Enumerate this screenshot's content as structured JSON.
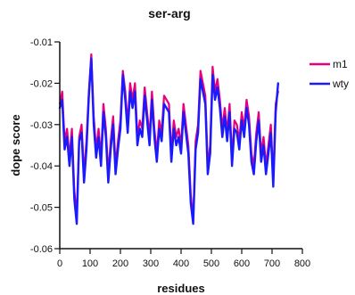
{
  "chart_data": {
    "type": "line",
    "title": "ser-arg",
    "xlabel": "residues",
    "ylabel": "dope score",
    "xlim": [
      0,
      800
    ],
    "ylim": [
      -0.06,
      -0.01
    ],
    "x_ticks": [
      0,
      100,
      200,
      300,
      400,
      500,
      600,
      700,
      800
    ],
    "x_tick_labels": [
      "0",
      "100",
      "200",
      "300",
      "400",
      "500",
      "600",
      "700",
      "800"
    ],
    "y_ticks": [
      -0.06,
      -0.05,
      -0.04,
      -0.03,
      -0.02,
      -0.01
    ],
    "y_tick_labels": [
      "-0.06",
      "-0.05",
      "-0.04",
      "-0.03",
      "-0.02",
      "-0.01"
    ],
    "grid": false,
    "legend_position": "top-right",
    "series": [
      {
        "name": "m1",
        "color": "#e6007e",
        "points": [
          [
            0,
            -0.025
          ],
          [
            8,
            -0.022
          ],
          [
            16,
            -0.034
          ],
          [
            24,
            -0.031
          ],
          [
            32,
            -0.038
          ],
          [
            40,
            -0.031
          ],
          [
            48,
            -0.046
          ],
          [
            56,
            -0.052
          ],
          [
            64,
            -0.033
          ],
          [
            72,
            -0.03
          ],
          [
            80,
            -0.042
          ],
          [
            88,
            -0.034
          ],
          [
            96,
            -0.022
          ],
          [
            104,
            -0.013
          ],
          [
            112,
            -0.028
          ],
          [
            120,
            -0.036
          ],
          [
            128,
            -0.031
          ],
          [
            136,
            -0.038
          ],
          [
            144,
            -0.025
          ],
          [
            152,
            -0.031
          ],
          [
            160,
            -0.042
          ],
          [
            168,
            -0.034
          ],
          [
            176,
            -0.028
          ],
          [
            184,
            -0.04
          ],
          [
            192,
            -0.034
          ],
          [
            200,
            -0.029
          ],
          [
            208,
            -0.017
          ],
          [
            216,
            -0.022
          ],
          [
            224,
            -0.03
          ],
          [
            232,
            -0.02
          ],
          [
            240,
            -0.024
          ],
          [
            248,
            -0.02
          ],
          [
            256,
            -0.033
          ],
          [
            264,
            -0.029
          ],
          [
            272,
            -0.031
          ],
          [
            280,
            -0.021
          ],
          [
            288,
            -0.027
          ],
          [
            296,
            -0.033
          ],
          [
            304,
            -0.022
          ],
          [
            312,
            -0.031
          ],
          [
            320,
            -0.037
          ],
          [
            328,
            -0.029
          ],
          [
            336,
            -0.032
          ],
          [
            344,
            -0.023
          ],
          [
            352,
            -0.024
          ],
          [
            360,
            -0.025
          ],
          [
            368,
            -0.037
          ],
          [
            376,
            -0.029
          ],
          [
            384,
            -0.033
          ],
          [
            392,
            -0.031
          ],
          [
            400,
            -0.035
          ],
          [
            408,
            -0.025
          ],
          [
            416,
            -0.03
          ],
          [
            424,
            -0.035
          ],
          [
            432,
            -0.047
          ],
          [
            440,
            -0.053
          ],
          [
            448,
            -0.034
          ],
          [
            456,
            -0.03
          ],
          [
            464,
            -0.017
          ],
          [
            472,
            -0.02
          ],
          [
            480,
            -0.023
          ],
          [
            488,
            -0.04
          ],
          [
            496,
            -0.035
          ],
          [
            504,
            -0.016
          ],
          [
            512,
            -0.022
          ],
          [
            520,
            -0.019
          ],
          [
            528,
            -0.024
          ],
          [
            536,
            -0.031
          ],
          [
            544,
            -0.026
          ],
          [
            552,
            -0.032
          ],
          [
            560,
            -0.025
          ],
          [
            568,
            -0.038
          ],
          [
            576,
            -0.029
          ],
          [
            584,
            -0.03
          ],
          [
            592,
            -0.034
          ],
          [
            600,
            -0.027
          ],
          [
            608,
            -0.031
          ],
          [
            616,
            -0.024
          ],
          [
            624,
            -0.028
          ],
          [
            632,
            -0.037
          ],
          [
            640,
            -0.04
          ],
          [
            648,
            -0.032
          ],
          [
            656,
            -0.027
          ],
          [
            664,
            -0.037
          ],
          [
            672,
            -0.033
          ],
          [
            680,
            -0.04
          ],
          [
            688,
            -0.035
          ],
          [
            696,
            -0.03
          ],
          [
            704,
            -0.043
          ],
          [
            712,
            -0.025
          ],
          [
            720,
            -0.022
          ]
        ]
      },
      {
        "name": "wty",
        "color": "#1a1aff",
        "points": [
          [
            0,
            -0.026
          ],
          [
            8,
            -0.024
          ],
          [
            16,
            -0.036
          ],
          [
            24,
            -0.033
          ],
          [
            32,
            -0.04
          ],
          [
            40,
            -0.033
          ],
          [
            48,
            -0.048
          ],
          [
            56,
            -0.054
          ],
          [
            64,
            -0.034
          ],
          [
            72,
            -0.032
          ],
          [
            80,
            -0.044
          ],
          [
            88,
            -0.036
          ],
          [
            96,
            -0.023
          ],
          [
            104,
            -0.014
          ],
          [
            112,
            -0.03
          ],
          [
            120,
            -0.038
          ],
          [
            128,
            -0.033
          ],
          [
            136,
            -0.04
          ],
          [
            144,
            -0.027
          ],
          [
            152,
            -0.033
          ],
          [
            160,
            -0.044
          ],
          [
            168,
            -0.036
          ],
          [
            176,
            -0.03
          ],
          [
            184,
            -0.042
          ],
          [
            192,
            -0.036
          ],
          [
            200,
            -0.031
          ],
          [
            208,
            -0.018
          ],
          [
            216,
            -0.024
          ],
          [
            224,
            -0.032
          ],
          [
            232,
            -0.022
          ],
          [
            240,
            -0.026
          ],
          [
            248,
            -0.022
          ],
          [
            256,
            -0.035
          ],
          [
            264,
            -0.031
          ],
          [
            272,
            -0.033
          ],
          [
            280,
            -0.023
          ],
          [
            288,
            -0.029
          ],
          [
            296,
            -0.035
          ],
          [
            304,
            -0.024
          ],
          [
            312,
            -0.033
          ],
          [
            320,
            -0.039
          ],
          [
            328,
            -0.031
          ],
          [
            336,
            -0.034
          ],
          [
            344,
            -0.025
          ],
          [
            352,
            -0.026
          ],
          [
            360,
            -0.027
          ],
          [
            368,
            -0.039
          ],
          [
            376,
            -0.031
          ],
          [
            384,
            -0.035
          ],
          [
            392,
            -0.033
          ],
          [
            400,
            -0.037
          ],
          [
            408,
            -0.027
          ],
          [
            416,
            -0.032
          ],
          [
            424,
            -0.037
          ],
          [
            432,
            -0.049
          ],
          [
            440,
            -0.054
          ],
          [
            448,
            -0.036
          ],
          [
            456,
            -0.032
          ],
          [
            464,
            -0.019
          ],
          [
            472,
            -0.022
          ],
          [
            480,
            -0.025
          ],
          [
            488,
            -0.042
          ],
          [
            496,
            -0.037
          ],
          [
            504,
            -0.018
          ],
          [
            512,
            -0.024
          ],
          [
            520,
            -0.021
          ],
          [
            528,
            -0.026
          ],
          [
            536,
            -0.033
          ],
          [
            544,
            -0.028
          ],
          [
            552,
            -0.034
          ],
          [
            560,
            -0.027
          ],
          [
            568,
            -0.04
          ],
          [
            576,
            -0.031
          ],
          [
            584,
            -0.032
          ],
          [
            592,
            -0.036
          ],
          [
            600,
            -0.029
          ],
          [
            608,
            -0.033
          ],
          [
            616,
            -0.026
          ],
          [
            624,
            -0.03
          ],
          [
            632,
            -0.039
          ],
          [
            640,
            -0.042
          ],
          [
            648,
            -0.034
          ],
          [
            656,
            -0.029
          ],
          [
            664,
            -0.039
          ],
          [
            672,
            -0.035
          ],
          [
            680,
            -0.042
          ],
          [
            688,
            -0.037
          ],
          [
            696,
            -0.032
          ],
          [
            704,
            -0.045
          ],
          [
            712,
            -0.027
          ],
          [
            720,
            -0.02
          ]
        ]
      }
    ]
  }
}
